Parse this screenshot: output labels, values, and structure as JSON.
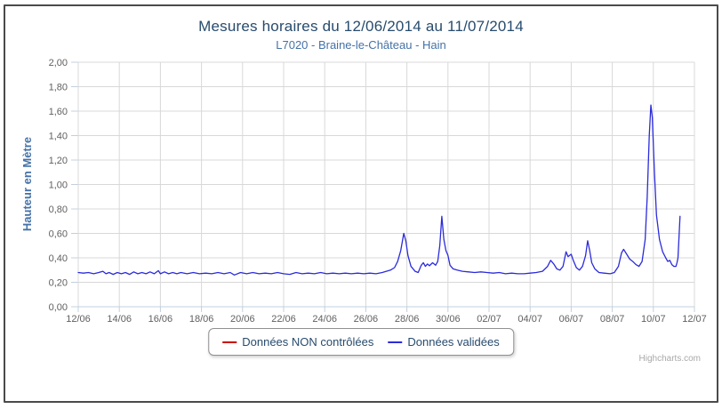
{
  "chart_data": {
    "type": "line",
    "title": "Mesures horaires du 12/06/2014 au 11/07/2014",
    "subtitle": "L7020 - Braine-le-Château - Hain",
    "ylabel": "Hauteur en Mètre",
    "xlabel": "",
    "ylim": [
      0,
      2
    ],
    "xlim_days": [
      0,
      30
    ],
    "grid": true,
    "legend_position": "bottom",
    "colors": {
      "grid": "#d8d8d8",
      "axis": "#c0d0e0",
      "tick": "#c0d0e0",
      "tick_label": "#606060",
      "title": "#274b6d",
      "subtitle": "#4572a7",
      "y_title": "#4572a7"
    },
    "y_ticks": [
      {
        "v": 0.0,
        "label": "0,00"
      },
      {
        "v": 0.2,
        "label": "0,20"
      },
      {
        "v": 0.4,
        "label": "0,40"
      },
      {
        "v": 0.6,
        "label": "0,60"
      },
      {
        "v": 0.8,
        "label": "0,80"
      },
      {
        "v": 1.0,
        "label": "1,00"
      },
      {
        "v": 1.2,
        "label": "1,20"
      },
      {
        "v": 1.4,
        "label": "1,40"
      },
      {
        "v": 1.6,
        "label": "1,60"
      },
      {
        "v": 1.8,
        "label": "1,80"
      },
      {
        "v": 2.0,
        "label": "2,00"
      }
    ],
    "x_ticks": [
      {
        "d": 0,
        "label": "12/06"
      },
      {
        "d": 2,
        "label": "14/06"
      },
      {
        "d": 4,
        "label": "16/06"
      },
      {
        "d": 6,
        "label": "18/06"
      },
      {
        "d": 8,
        "label": "20/06"
      },
      {
        "d": 10,
        "label": "22/06"
      },
      {
        "d": 12,
        "label": "24/06"
      },
      {
        "d": 14,
        "label": "26/06"
      },
      {
        "d": 16,
        "label": "28/06"
      },
      {
        "d": 18,
        "label": "30/06"
      },
      {
        "d": 20,
        "label": "02/07"
      },
      {
        "d": 22,
        "label": "04/07"
      },
      {
        "d": 24,
        "label": "06/07"
      },
      {
        "d": 26,
        "label": "08/07"
      },
      {
        "d": 28,
        "label": "10/07"
      },
      {
        "d": 30,
        "label": "12/07"
      }
    ],
    "series": [
      {
        "name": "Données NON contrôlées",
        "color": "#cc0000",
        "points": []
      },
      {
        "name": "Données validées",
        "color": "#2b2bdb",
        "points": [
          [
            0,
            0.28
          ],
          [
            0.25,
            0.275
          ],
          [
            0.5,
            0.28
          ],
          [
            0.75,
            0.27
          ],
          [
            1,
            0.28
          ],
          [
            1.2,
            0.29
          ],
          [
            1.35,
            0.27
          ],
          [
            1.5,
            0.28
          ],
          [
            1.7,
            0.265
          ],
          [
            1.9,
            0.28
          ],
          [
            2.1,
            0.27
          ],
          [
            2.3,
            0.28
          ],
          [
            2.5,
            0.265
          ],
          [
            2.7,
            0.285
          ],
          [
            2.9,
            0.27
          ],
          [
            3.1,
            0.28
          ],
          [
            3.3,
            0.27
          ],
          [
            3.5,
            0.285
          ],
          [
            3.7,
            0.27
          ],
          [
            3.9,
            0.295
          ],
          [
            4,
            0.27
          ],
          [
            4.2,
            0.285
          ],
          [
            4.4,
            0.27
          ],
          [
            4.6,
            0.28
          ],
          [
            4.8,
            0.27
          ],
          [
            5,
            0.28
          ],
          [
            5.3,
            0.27
          ],
          [
            5.6,
            0.28
          ],
          [
            5.9,
            0.27
          ],
          [
            6.2,
            0.275
          ],
          [
            6.5,
            0.27
          ],
          [
            6.8,
            0.28
          ],
          [
            7.1,
            0.27
          ],
          [
            7.4,
            0.28
          ],
          [
            7.6,
            0.26
          ],
          [
            7.9,
            0.28
          ],
          [
            8.2,
            0.27
          ],
          [
            8.5,
            0.28
          ],
          [
            8.8,
            0.27
          ],
          [
            9.1,
            0.275
          ],
          [
            9.4,
            0.27
          ],
          [
            9.7,
            0.28
          ],
          [
            10,
            0.27
          ],
          [
            10.3,
            0.265
          ],
          [
            10.6,
            0.28
          ],
          [
            10.9,
            0.27
          ],
          [
            11.2,
            0.275
          ],
          [
            11.5,
            0.27
          ],
          [
            11.8,
            0.28
          ],
          [
            12.1,
            0.27
          ],
          [
            12.4,
            0.275
          ],
          [
            12.7,
            0.27
          ],
          [
            13,
            0.275
          ],
          [
            13.3,
            0.27
          ],
          [
            13.6,
            0.275
          ],
          [
            13.9,
            0.27
          ],
          [
            14.2,
            0.275
          ],
          [
            14.5,
            0.27
          ],
          [
            14.8,
            0.28
          ],
          [
            15,
            0.29
          ],
          [
            15.2,
            0.3
          ],
          [
            15.4,
            0.32
          ],
          [
            15.55,
            0.37
          ],
          [
            15.7,
            0.46
          ],
          [
            15.85,
            0.6
          ],
          [
            15.95,
            0.54
          ],
          [
            16.05,
            0.42
          ],
          [
            16.2,
            0.33
          ],
          [
            16.4,
            0.29
          ],
          [
            16.55,
            0.28
          ],
          [
            16.7,
            0.34
          ],
          [
            16.8,
            0.36
          ],
          [
            16.9,
            0.33
          ],
          [
            17,
            0.35
          ],
          [
            17.1,
            0.335
          ],
          [
            17.25,
            0.36
          ],
          [
            17.4,
            0.34
          ],
          [
            17.5,
            0.37
          ],
          [
            17.6,
            0.5
          ],
          [
            17.7,
            0.74
          ],
          [
            17.8,
            0.55
          ],
          [
            17.9,
            0.46
          ],
          [
            18,
            0.42
          ],
          [
            18.1,
            0.34
          ],
          [
            18.25,
            0.31
          ],
          [
            18.45,
            0.3
          ],
          [
            18.7,
            0.29
          ],
          [
            19,
            0.285
          ],
          [
            19.3,
            0.28
          ],
          [
            19.6,
            0.285
          ],
          [
            19.9,
            0.28
          ],
          [
            20.2,
            0.275
          ],
          [
            20.5,
            0.28
          ],
          [
            20.8,
            0.27
          ],
          [
            21.1,
            0.275
          ],
          [
            21.4,
            0.27
          ],
          [
            21.7,
            0.27
          ],
          [
            22,
            0.275
          ],
          [
            22.3,
            0.28
          ],
          [
            22.6,
            0.29
          ],
          [
            22.85,
            0.33
          ],
          [
            23,
            0.38
          ],
          [
            23.15,
            0.35
          ],
          [
            23.3,
            0.31
          ],
          [
            23.45,
            0.3
          ],
          [
            23.6,
            0.33
          ],
          [
            23.75,
            0.45
          ],
          [
            23.85,
            0.41
          ],
          [
            24,
            0.43
          ],
          [
            24.1,
            0.38
          ],
          [
            24.25,
            0.32
          ],
          [
            24.4,
            0.3
          ],
          [
            24.55,
            0.33
          ],
          [
            24.7,
            0.42
          ],
          [
            24.8,
            0.54
          ],
          [
            24.9,
            0.46
          ],
          [
            25,
            0.36
          ],
          [
            25.15,
            0.31
          ],
          [
            25.35,
            0.28
          ],
          [
            25.6,
            0.275
          ],
          [
            25.9,
            0.27
          ],
          [
            26.1,
            0.28
          ],
          [
            26.3,
            0.33
          ],
          [
            26.45,
            0.44
          ],
          [
            26.55,
            0.47
          ],
          [
            26.7,
            0.43
          ],
          [
            26.85,
            0.39
          ],
          [
            27,
            0.37
          ],
          [
            27.15,
            0.345
          ],
          [
            27.3,
            0.33
          ],
          [
            27.45,
            0.37
          ],
          [
            27.6,
            0.55
          ],
          [
            27.7,
            0.9
          ],
          [
            27.8,
            1.4
          ],
          [
            27.88,
            1.65
          ],
          [
            27.95,
            1.55
          ],
          [
            28.05,
            1.1
          ],
          [
            28.15,
            0.75
          ],
          [
            28.3,
            0.55
          ],
          [
            28.45,
            0.45
          ],
          [
            28.6,
            0.4
          ],
          [
            28.7,
            0.37
          ],
          [
            28.8,
            0.38
          ],
          [
            28.9,
            0.345
          ],
          [
            29,
            0.33
          ],
          [
            29.1,
            0.33
          ],
          [
            29.15,
            0.36
          ],
          [
            29.2,
            0.4
          ],
          [
            29.3,
            0.74
          ]
        ]
      }
    ]
  },
  "credits": {
    "label": "Highcharts.com"
  }
}
